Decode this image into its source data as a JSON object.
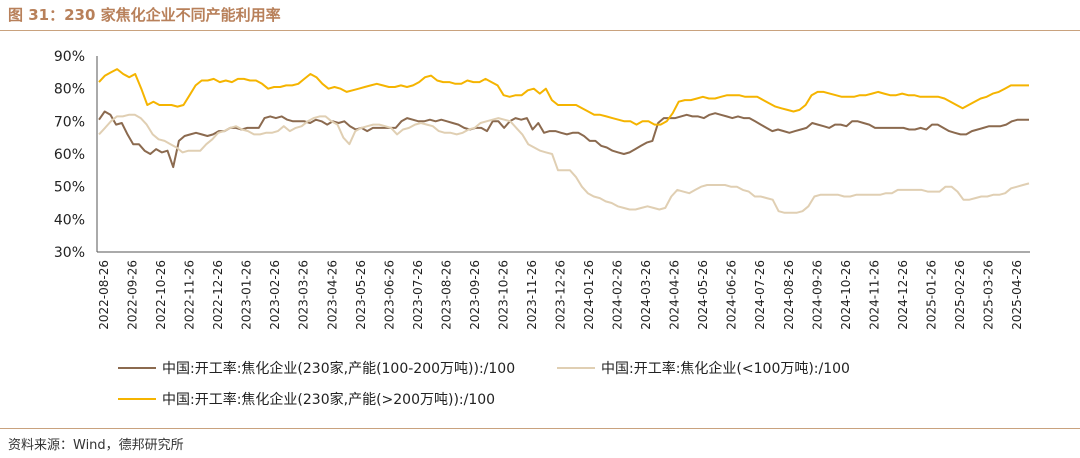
{
  "header": {
    "title": "图 31：230 家焦化企业不同产能利用率"
  },
  "footer": {
    "source": "资料来源：Wind，德邦研究所"
  },
  "colors": {
    "frame": "#c9a27e",
    "title": "#b8805a"
  },
  "chart_data": {
    "type": "line",
    "title": "",
    "xlabel": "",
    "ylabel": "",
    "ylim": [
      30,
      90
    ],
    "yticks": [
      30,
      40,
      50,
      60,
      70,
      80,
      90
    ],
    "ytick_labels": [
      "30%",
      "40%",
      "50%",
      "60%",
      "70%",
      "80%",
      "90%"
    ],
    "grid": false,
    "legend_position": "bottom",
    "x_tick_labels": [
      "2022-08-26",
      "2022-09-26",
      "2022-10-26",
      "2022-11-26",
      "2022-12-26",
      "2023-01-26",
      "2023-02-26",
      "2023-03-26",
      "2023-04-26",
      "2023-05-26",
      "2023-06-26",
      "2023-07-26",
      "2023-08-26",
      "2023-09-26",
      "2023-10-26",
      "2023-11-26",
      "2023-12-26",
      "2024-01-26",
      "2024-02-26",
      "2024-03-26",
      "2024-04-26",
      "2024-05-26",
      "2024-06-26",
      "2024-07-26",
      "2024-08-26",
      "2024-09-26",
      "2024-10-26",
      "2024-11-26",
      "2024-12-26",
      "2025-01-26",
      "2025-02-26",
      "2025-03-26",
      "2025-04-26"
    ],
    "x_unit": "week",
    "x_start": "2022-08-26",
    "series": [
      {
        "name": "中国:开工率:焦化企业(230家,产能(100-200万吨)):/100",
        "color": "#8b6a4f",
        "values": [
          70.5,
          73,
          72,
          69,
          69.5,
          66,
          63,
          63,
          61,
          60,
          61.5,
          60.5,
          61,
          56,
          64,
          65.5,
          66,
          66.5,
          66,
          65.5,
          66,
          67,
          67,
          68,
          68,
          67.5,
          68,
          68,
          68,
          71,
          71.5,
          71,
          71.5,
          70.5,
          70,
          70,
          70,
          69.5,
          70.5,
          70,
          69,
          70,
          69.5,
          70,
          68.5,
          67.5,
          68,
          67,
          68,
          68,
          68,
          68,
          68,
          70,
          71,
          70.5,
          70,
          70,
          70.5,
          70,
          70.5,
          70,
          69.5,
          69,
          68,
          67.5,
          68,
          68,
          67,
          70,
          70,
          68,
          70,
          71,
          70.5,
          71,
          67.5,
          69.5,
          66.5,
          67,
          67,
          66.5,
          66,
          66.5,
          66.5,
          65.5,
          64,
          64,
          62.5,
          62,
          61,
          60.5,
          60,
          60.5,
          61.5,
          62.5,
          63.5,
          64,
          69.5,
          71,
          71,
          71,
          71.5,
          72,
          71.5,
          71.5,
          71,
          72,
          72.5,
          72,
          71.5,
          71,
          71.5,
          71,
          71,
          70,
          69,
          68,
          67,
          67.5,
          67,
          66.5,
          67,
          67.5,
          68,
          69.5,
          69,
          68.5,
          68,
          69,
          69,
          68.5,
          70,
          70,
          69.5,
          69,
          68,
          68,
          68,
          68,
          68,
          68,
          67.5,
          67.5,
          68,
          67.5,
          69,
          69,
          68,
          67,
          66.5,
          66,
          66,
          67,
          67.5,
          68,
          68.5,
          68.5,
          68.5,
          69,
          70,
          70.5,
          70.5,
          70.5
        ]
      },
      {
        "name": "中国:开工率:焦化企业(<100万吨):/100",
        "color": "#e0cfb3",
        "values": [
          66,
          68,
          70,
          71.5,
          71.5,
          72,
          72,
          71,
          69,
          66,
          64.5,
          64,
          63,
          62,
          60.5,
          61,
          61,
          61,
          63,
          64.5,
          66.5,
          67,
          68,
          68.5,
          67.5,
          67,
          66,
          66,
          66.5,
          66.5,
          67,
          68.5,
          67,
          68,
          68.5,
          70,
          71,
          71.5,
          71.5,
          70,
          69,
          65,
          63,
          67,
          68,
          68.5,
          69,
          69,
          68.5,
          68,
          66,
          67.5,
          68,
          69,
          69.5,
          69,
          68.5,
          67,
          66.5,
          66.5,
          66,
          66.5,
          67.5,
          68,
          69.5,
          70,
          70.5,
          71,
          70.5,
          70,
          68,
          66,
          63,
          62,
          61,
          60.5,
          60,
          55,
          55,
          55,
          53,
          50,
          48,
          47,
          46.5,
          45.5,
          45,
          44,
          43.5,
          43,
          43,
          43.5,
          44,
          43.5,
          43,
          43.5,
          47,
          49,
          48.5,
          48,
          49,
          50,
          50.5,
          50.5,
          50.5,
          50.5,
          50,
          50,
          49,
          48.5,
          47,
          47,
          46.5,
          46,
          42.5,
          42,
          42,
          42,
          42.5,
          44,
          47,
          47.5,
          47.5,
          47.5,
          47.5,
          47,
          47,
          47.5,
          47.5,
          47.5,
          47.5,
          47.5,
          48,
          48,
          49,
          49,
          49,
          49,
          49,
          48.5,
          48.5,
          48.5,
          50,
          50,
          48.5,
          46,
          46,
          46.5,
          47,
          47,
          47.5,
          47.5,
          48,
          49.5,
          50,
          50.5,
          51
        ]
      },
      {
        "name": "中国:开工率:焦化企业(230家,产能(>200万吨)):/100",
        "color": "#f5b400",
        "values": [
          82,
          84,
          85,
          86,
          84.5,
          83.5,
          84.5,
          80,
          75,
          76,
          75,
          75,
          75,
          74.5,
          75,
          78,
          81,
          82.5,
          82.5,
          83,
          82,
          82.5,
          82,
          83,
          83,
          82.5,
          82.5,
          81.5,
          80,
          80.5,
          80.5,
          81,
          81,
          81.5,
          83,
          84.5,
          83.5,
          81.5,
          80,
          80.5,
          80,
          79,
          79.5,
          80,
          80.5,
          81,
          81.5,
          81,
          80.5,
          80.5,
          81,
          80.5,
          81,
          82,
          83.5,
          84,
          82.5,
          82,
          82,
          81.5,
          81.5,
          82.5,
          82,
          82,
          83,
          82,
          81,
          78,
          77.5,
          78,
          78,
          79.5,
          80,
          78.5,
          80,
          76.5,
          75,
          75,
          75,
          75,
          74,
          73,
          72,
          72,
          71.5,
          71,
          70.5,
          70,
          70,
          69,
          70,
          70,
          69,
          69,
          70,
          72.5,
          76,
          76.5,
          76.5,
          77,
          77.5,
          77,
          77,
          77.5,
          78,
          78,
          78,
          77.5,
          77.5,
          77.5,
          76.5,
          75.5,
          74.5,
          74,
          73.5,
          73,
          73.5,
          75,
          78,
          79,
          79,
          78.5,
          78,
          77.5,
          77.5,
          77.5,
          78,
          78,
          78.5,
          79,
          78.5,
          78,
          78,
          78.5,
          78,
          78,
          77.5,
          77.5,
          77.5,
          77.5,
          77,
          76,
          75,
          74,
          75,
          76,
          77,
          77.5,
          78.5,
          79,
          80,
          81,
          81,
          81,
          81
        ]
      }
    ]
  }
}
